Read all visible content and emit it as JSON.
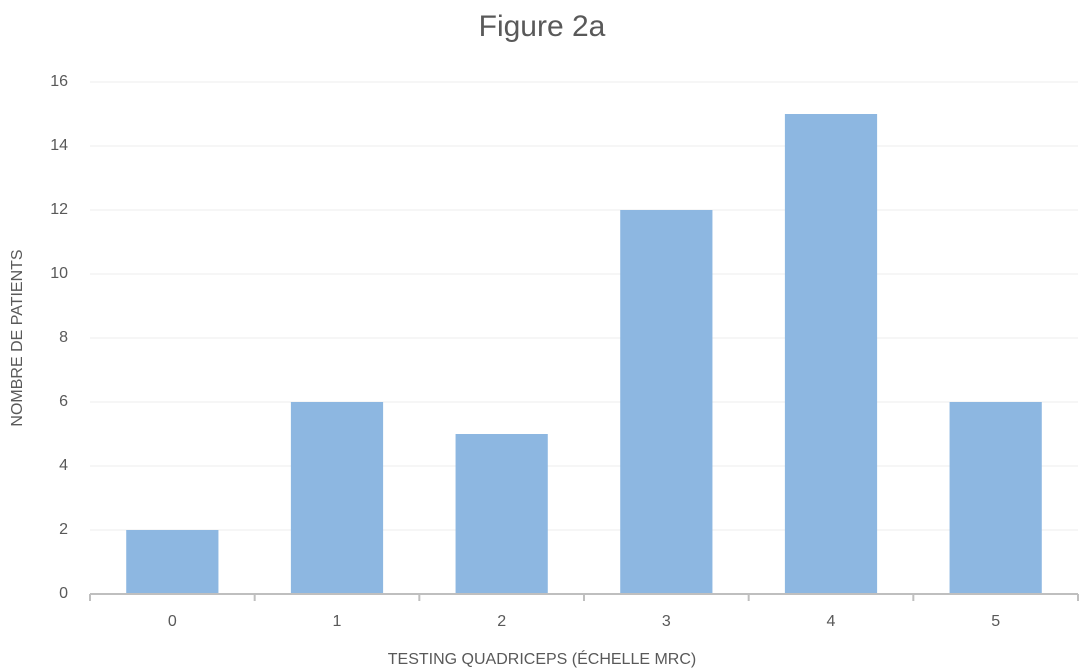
{
  "chart_data": {
    "type": "bar",
    "title": "Figure 2a",
    "x_label": "TESTING QUADRICEPS (ÉCHELLE MRC)",
    "y_label": "NOMBRE DE PATIENTS",
    "categories": [
      "0",
      "1",
      "2",
      "3",
      "4",
      "5"
    ],
    "values": [
      2,
      6,
      5,
      12,
      15,
      6
    ],
    "color": "#8db7e1",
    "ylim": [
      0,
      16
    ],
    "yticks": [
      0,
      2,
      4,
      6,
      8,
      10,
      12,
      14,
      16
    ],
    "grid": true
  }
}
